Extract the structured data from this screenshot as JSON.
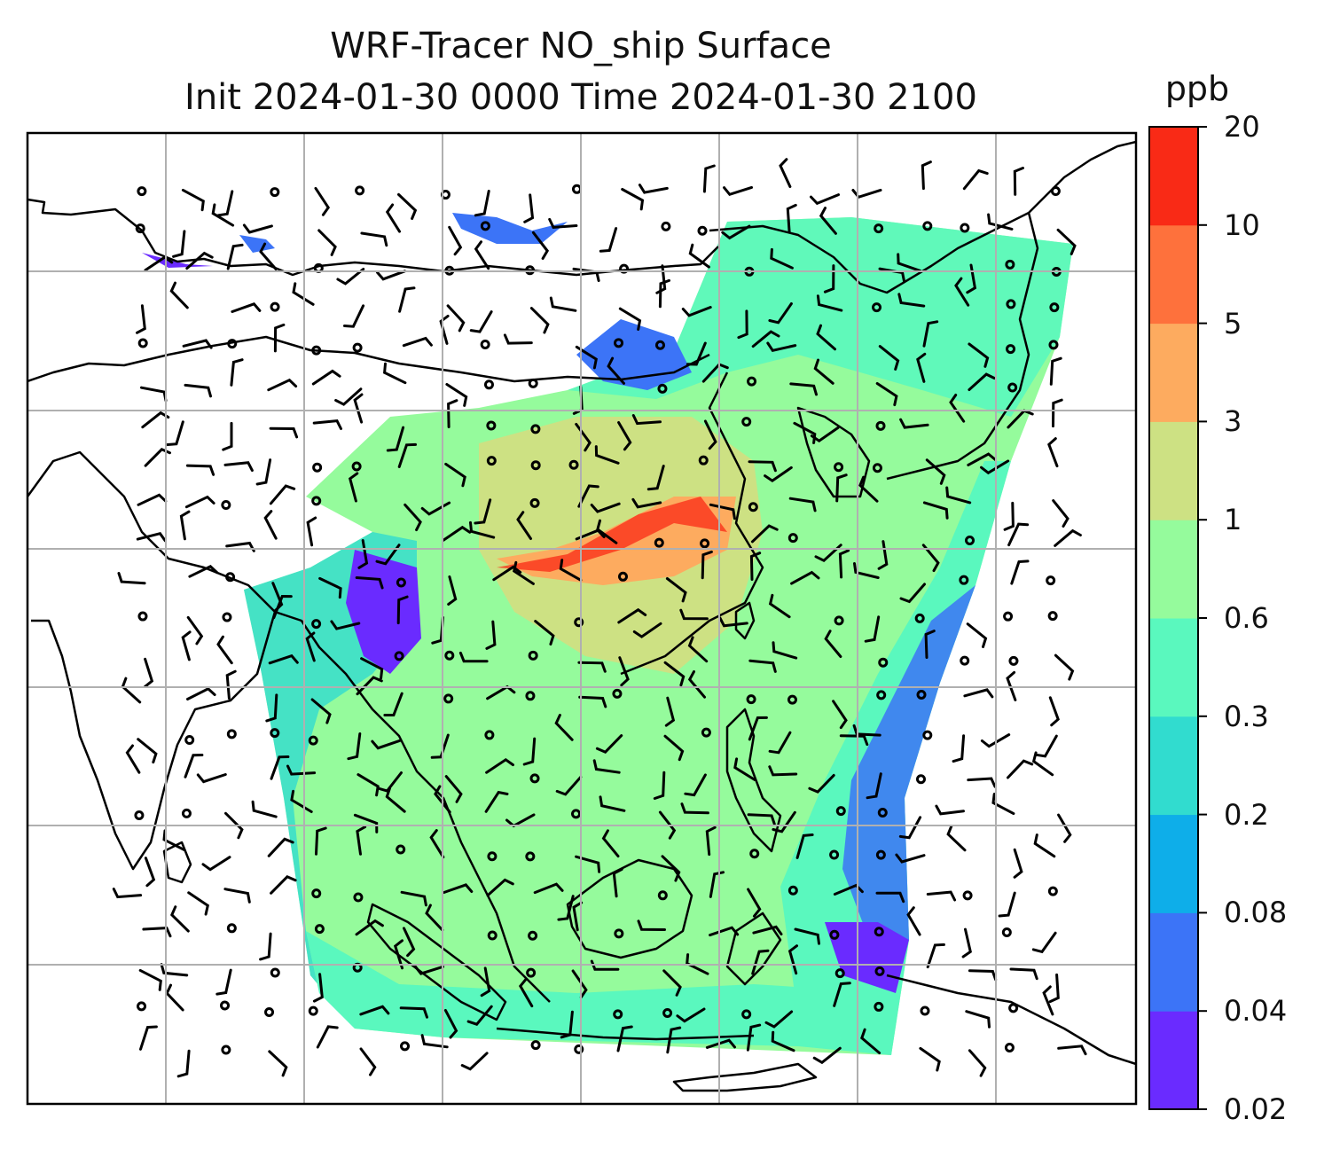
{
  "title": {
    "line1": "WRF-Tracer NO_ship Surface",
    "line2": "Init 2024-01-30 0000 Time 2024-01-30 2100"
  },
  "colorbar": {
    "unit": "ppb",
    "levels": [
      "0.02",
      "0.04",
      "0.08",
      "0.2",
      "0.3",
      "0.6",
      "1",
      "3",
      "5",
      "10",
      "20"
    ],
    "colors": [
      "#6a2bff",
      "#3c74f7",
      "#0eaee9",
      "#31dccf",
      "#5af8be",
      "#95fb9c",
      "#cde183",
      "#fdab5f",
      "#fe713c",
      "#f92a16"
    ]
  },
  "map": {
    "coastline_color": "#000000",
    "gridline_color": "#b0b0b0",
    "wind_barb_color": "#000000"
  }
}
